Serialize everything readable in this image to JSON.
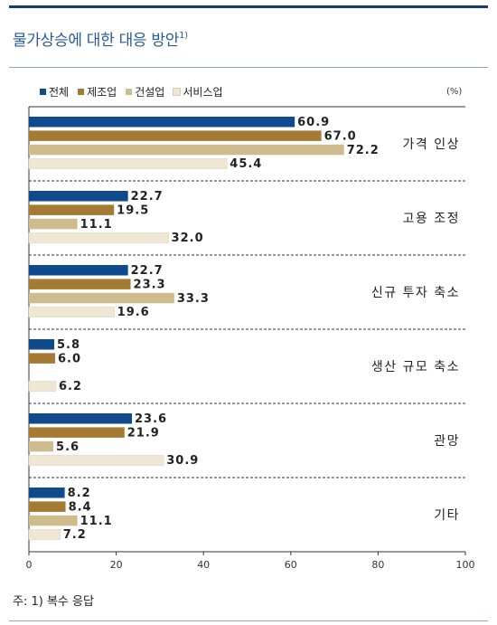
{
  "title": "물가상승에 대한 대응 방안",
  "title_sup": "1)",
  "unit": "(%)",
  "note": "주: 1) 복수 응답",
  "colors": {
    "title": "#2a5a9a"
  },
  "chart_data": {
    "type": "bar",
    "orientation": "horizontal",
    "categories": [
      "가격 인상",
      "고용 조정",
      "신규 투자 축소",
      "생산 규모 축소",
      "관망",
      "기타"
    ],
    "series": [
      {
        "name": "전체",
        "color": "#0e4a8c",
        "values": [
          60.9,
          22.7,
          22.7,
          5.8,
          23.6,
          8.2
        ]
      },
      {
        "name": "제조업",
        "color": "#a57b33",
        "values": [
          67.0,
          19.5,
          23.3,
          6.0,
          21.9,
          8.4
        ]
      },
      {
        "name": "건설업",
        "color": "#cfbc8e",
        "values": [
          72.2,
          11.1,
          33.3,
          null,
          5.6,
          11.1
        ]
      },
      {
        "name": "서비스업",
        "color": "#efe7d4",
        "values": [
          45.4,
          32.0,
          19.6,
          6.2,
          30.9,
          7.2
        ]
      }
    ],
    "value_labels": [
      [
        "60.9",
        "67.0",
        "72.2",
        "45.4"
      ],
      [
        "22.7",
        "19.5",
        "11.1",
        "32.0"
      ],
      [
        "22.7",
        "23.3",
        "33.3",
        "19.6"
      ],
      [
        "5.8",
        "6.0",
        "",
        "6.2"
      ],
      [
        "23.6",
        "21.9",
        "5.6",
        "30.9"
      ],
      [
        "8.2",
        "8.4",
        "11.1",
        "7.2"
      ]
    ],
    "xlim": [
      0,
      100
    ],
    "xticks": [
      0,
      20,
      40,
      60,
      80,
      100
    ],
    "legend": "top-left"
  }
}
